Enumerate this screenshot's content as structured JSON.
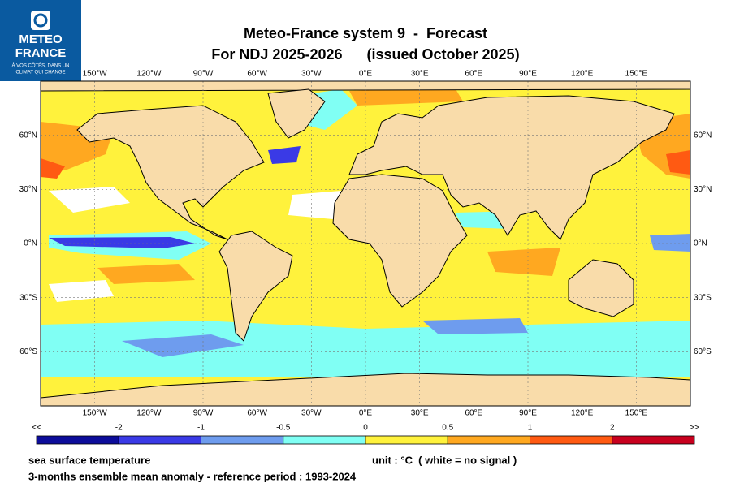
{
  "logo": {
    "line1": "METEO",
    "line2": "FRANCE",
    "tagline": [
      "À VOS CÔTÉS, DANS UN",
      "CLIMAT QUI CHANGE"
    ]
  },
  "header": {
    "title": "Meteo-France system 9  -  Forecast",
    "subtitle": "For NDJ 2025-2026      (issued October 2025)"
  },
  "map": {
    "longitude_labels": [
      "150°W",
      "120°W",
      "90°W",
      "60°W",
      "30°W",
      "0°E",
      "30°E",
      "60°E",
      "90°E",
      "120°E",
      "150°E"
    ],
    "latitude_labels": [
      "60°N",
      "30°N",
      "0°N",
      "30°S",
      "60°S"
    ]
  },
  "colorbar": {
    "labels": [
      "<<",
      "-2",
      "-1",
      "-0.5",
      "0",
      "0.5",
      "1",
      "2",
      ">>"
    ],
    "colors": [
      "#0c0c9a",
      "#3a3ae6",
      "#6e9cee",
      "#80fff4",
      "#fff23c",
      "#ffa820",
      "#ff5a12",
      "#c8001e"
    ]
  },
  "footer": {
    "variable": "sea surface temperature",
    "unit": "unit : °C  ( white = no signal )",
    "description": "3-months ensemble mean anomaly - reference period : 1993-2024"
  }
}
